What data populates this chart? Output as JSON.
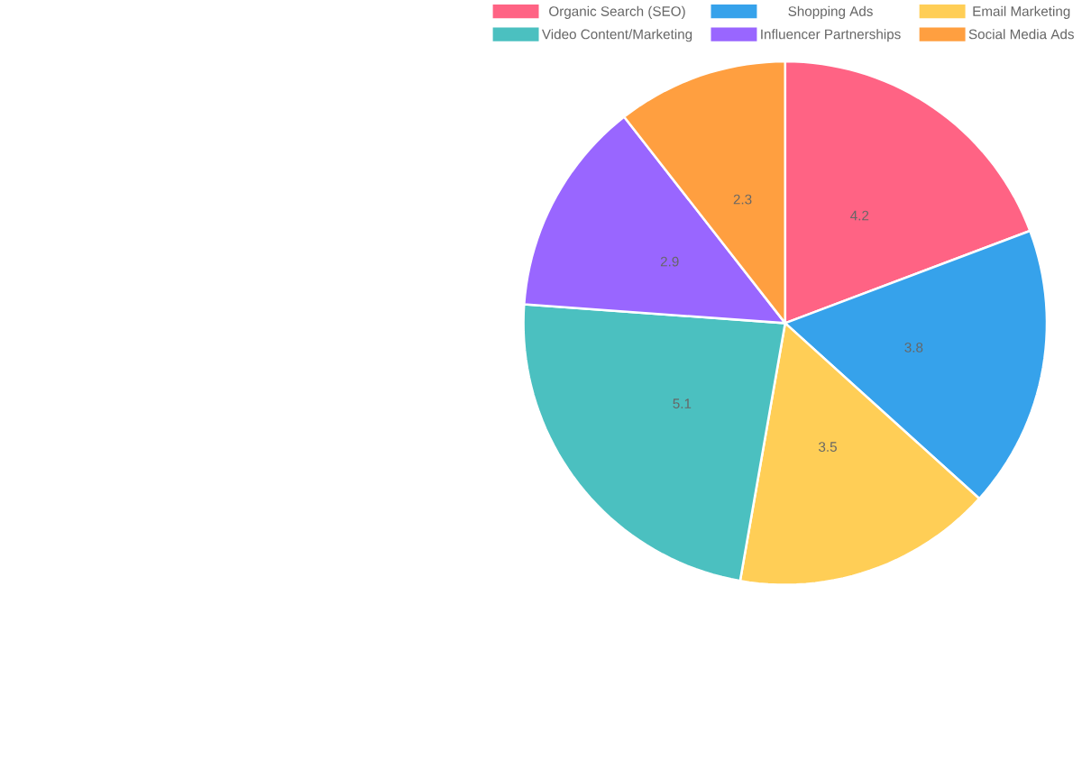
{
  "chart_data": {
    "type": "pie",
    "categories": [
      "Organic Search (SEO)",
      "Shopping Ads",
      "Email Marketing",
      "Video Content/Marketing",
      "Influencer Partnerships",
      "Social Media Ads"
    ],
    "values": [
      4.2,
      3.8,
      3.5,
      5.1,
      2.9,
      2.3
    ],
    "colors": [
      "#ff6384",
      "#36a2eb",
      "#ffce56",
      "#4bc0c0",
      "#9966ff",
      "#ff9f40"
    ],
    "data_labels": true,
    "legend": "top"
  }
}
